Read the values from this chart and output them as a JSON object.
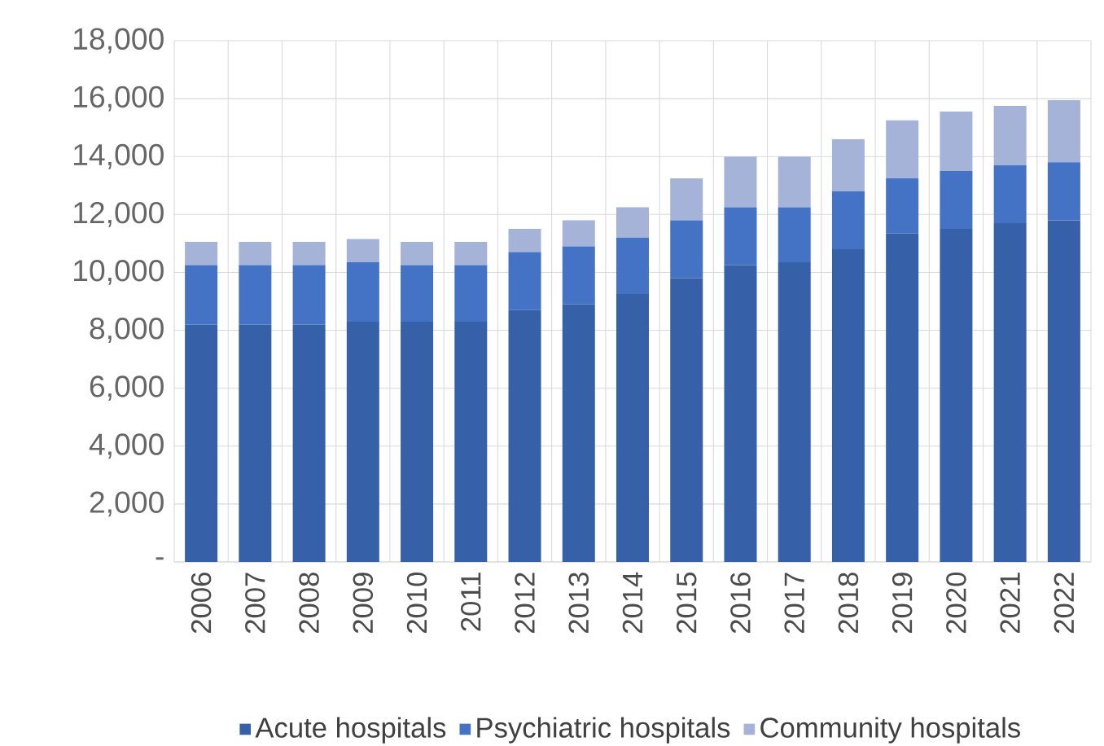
{
  "chart_data": {
    "type": "bar",
    "stacked": true,
    "categories": [
      "2006",
      "2007",
      "2008",
      "2009",
      "2010",
      "2011",
      "2012",
      "2013",
      "2014",
      "2015",
      "2016",
      "2017",
      "2018",
      "2019",
      "2020",
      "2021",
      "2022"
    ],
    "series": [
      {
        "name": "Acute hospitals",
        "color": "#3660a8",
        "values": [
          8200,
          8200,
          8200,
          8300,
          8300,
          8300,
          8700,
          8900,
          9250,
          9800,
          10250,
          10350,
          10800,
          11350,
          11500,
          11700,
          11800
        ]
      },
      {
        "name": "Psychiatric hospitals",
        "color": "#4472c4",
        "values": [
          2050,
          2050,
          2050,
          2050,
          1950,
          1950,
          2000,
          2000,
          1950,
          2000,
          2000,
          1900,
          2000,
          1900,
          2000,
          2000,
          2000
        ]
      },
      {
        "name": "Community hospitals",
        "color": "#a5b3d8",
        "values": [
          800,
          800,
          800,
          800,
          800,
          800,
          800,
          900,
          1050,
          1450,
          1750,
          1750,
          1800,
          2000,
          2050,
          2050,
          2150
        ]
      }
    ],
    "ylim": [
      0,
      18000
    ],
    "yticks": [
      {
        "value": 0,
        "label": "-"
      },
      {
        "value": 2000,
        "label": "2,000"
      },
      {
        "value": 4000,
        "label": "4,000"
      },
      {
        "value": 6000,
        "label": "6,000"
      },
      {
        "value": 8000,
        "label": "8,000"
      },
      {
        "value": 10000,
        "label": "10,000"
      },
      {
        "value": 12000,
        "label": "12,000"
      },
      {
        "value": 14000,
        "label": "14,000"
      },
      {
        "value": 16000,
        "label": "16,000"
      },
      {
        "value": 18000,
        "label": "18,000"
      }
    ],
    "grid": true,
    "legend": "bottom"
  }
}
